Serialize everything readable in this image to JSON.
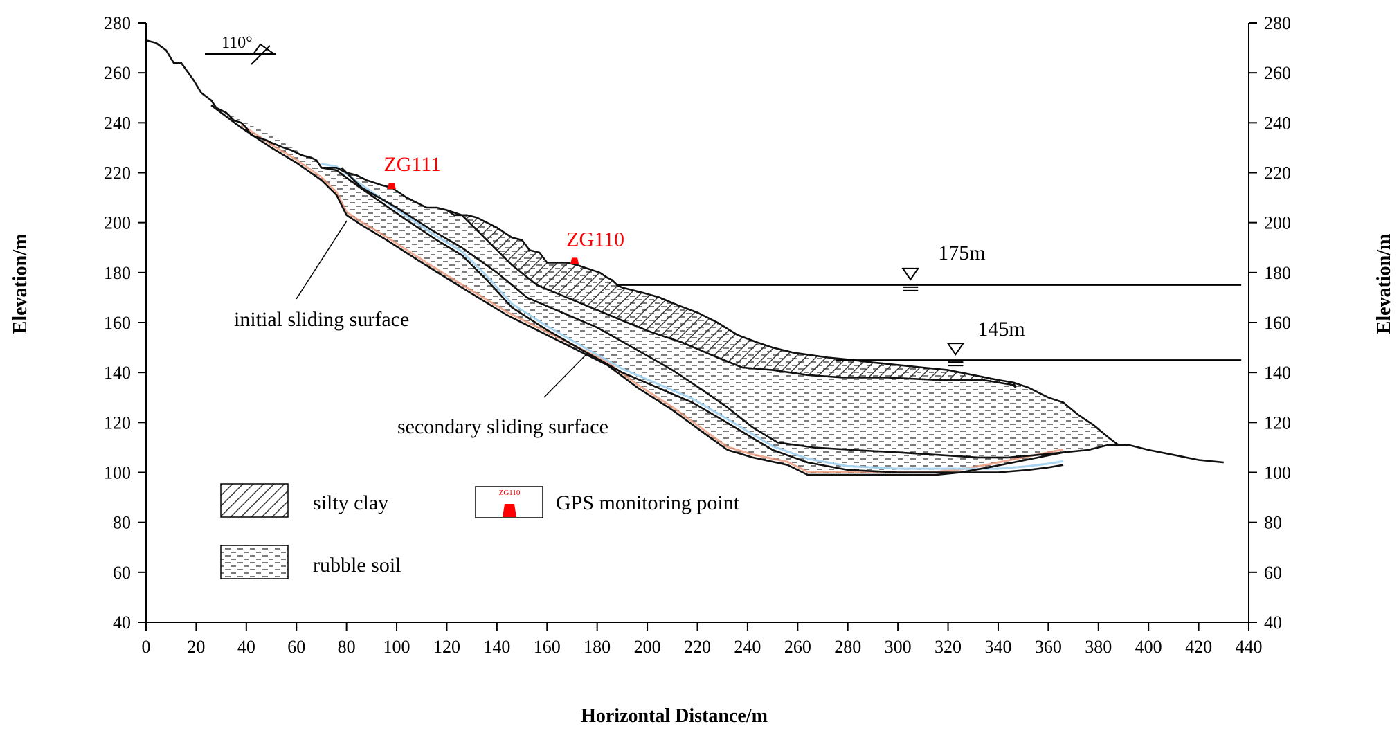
{
  "figure": {
    "x_axis_title": "Horizontal Distance/m",
    "y_axis_title_left": "Elevation/m",
    "y_axis_title_right": "Elevation/m"
  },
  "chart_data": {
    "type": "cross-section",
    "x_range": [
      0,
      440
    ],
    "y_range": [
      40,
      280
    ],
    "x_ticks": [
      0,
      20,
      40,
      60,
      80,
      100,
      120,
      140,
      160,
      180,
      200,
      220,
      240,
      260,
      280,
      300,
      320,
      340,
      360,
      380,
      400,
      420,
      440
    ],
    "y_ticks": [
      40,
      60,
      80,
      100,
      120,
      140,
      160,
      180,
      200,
      220,
      240,
      260,
      280
    ],
    "ground_surface": [
      [
        0,
        273
      ],
      [
        4,
        272
      ],
      [
        8,
        269
      ],
      [
        11,
        264
      ],
      [
        14,
        264
      ],
      [
        19,
        257
      ],
      [
        22,
        252
      ],
      [
        26,
        249
      ],
      [
        28,
        246
      ],
      [
        30,
        245
      ],
      [
        32,
        244
      ],
      [
        35,
        241
      ],
      [
        38,
        240
      ],
      [
        40,
        238
      ],
      [
        42,
        235
      ],
      [
        45,
        234
      ],
      [
        48,
        233
      ],
      [
        50,
        232
      ],
      [
        55,
        230
      ],
      [
        58,
        229
      ],
      [
        62,
        227
      ],
      [
        66,
        226
      ],
      [
        68,
        225
      ],
      [
        70,
        222
      ],
      [
        74,
        222
      ],
      [
        76,
        222
      ],
      [
        78,
        221
      ],
      [
        80,
        220
      ],
      [
        84,
        219
      ],
      [
        88,
        217
      ],
      [
        94,
        215
      ],
      [
        98,
        214
      ],
      [
        101,
        212
      ],
      [
        104,
        210
      ],
      [
        108,
        208
      ],
      [
        112,
        206
      ],
      [
        116,
        206
      ],
      [
        120,
        205
      ],
      [
        123,
        203
      ],
      [
        128,
        203
      ],
      [
        132,
        202
      ],
      [
        136,
        200
      ],
      [
        140,
        198
      ],
      [
        146,
        194
      ],
      [
        150,
        193
      ],
      [
        153,
        189
      ],
      [
        157,
        188
      ],
      [
        160,
        184
      ],
      [
        164,
        184
      ],
      [
        168,
        184
      ],
      [
        172,
        183
      ],
      [
        175,
        182
      ],
      [
        178,
        181
      ],
      [
        181,
        180
      ],
      [
        184,
        178
      ],
      [
        186,
        177
      ],
      [
        188,
        175
      ],
      [
        190,
        174
      ],
      [
        194,
        173
      ],
      [
        198,
        172
      ],
      [
        205,
        170
      ],
      [
        212,
        167
      ],
      [
        220,
        164
      ],
      [
        228,
        160
      ],
      [
        236,
        155
      ],
      [
        244,
        152
      ],
      [
        250,
        150
      ],
      [
        258,
        148
      ],
      [
        265,
        147
      ],
      [
        272,
        146
      ],
      [
        282,
        145
      ],
      [
        290,
        144
      ],
      [
        300,
        143
      ],
      [
        310,
        142
      ],
      [
        320,
        141
      ],
      [
        330,
        139
      ],
      [
        340,
        137
      ],
      [
        346,
        136
      ],
      [
        347,
        134
      ]
    ],
    "rubble_boundary": [
      [
        30,
        245
      ],
      [
        38,
        241
      ],
      [
        50,
        235
      ],
      [
        60,
        229
      ],
      [
        72,
        221
      ],
      [
        80,
        219
      ],
      [
        88,
        217
      ]
    ],
    "initial_sliding_surface": [
      [
        26,
        247
      ],
      [
        38,
        238
      ],
      [
        50,
        230
      ],
      [
        60,
        224
      ],
      [
        70,
        217
      ],
      [
        76,
        211
      ],
      [
        80,
        203
      ],
      [
        86,
        199
      ],
      [
        96,
        193
      ],
      [
        110,
        184
      ],
      [
        126,
        174
      ],
      [
        144,
        163
      ],
      [
        164,
        153
      ],
      [
        184,
        143
      ],
      [
        196,
        134
      ],
      [
        210,
        125
      ],
      [
        225,
        114
      ],
      [
        232,
        109
      ],
      [
        242,
        106
      ],
      [
        256,
        103
      ],
      [
        264,
        99
      ],
      [
        276,
        99
      ],
      [
        300,
        99
      ],
      [
        315,
        99
      ],
      [
        325,
        100
      ],
      [
        336,
        102
      ],
      [
        346,
        104
      ],
      [
        356,
        106
      ],
      [
        366,
        108
      ],
      [
        376,
        109
      ],
      [
        384,
        111
      ],
      [
        388,
        111
      ],
      [
        392,
        111
      ],
      [
        400,
        109
      ],
      [
        410,
        107
      ],
      [
        420,
        105
      ],
      [
        430,
        104
      ]
    ],
    "secondary_sliding_surface": [
      [
        70,
        222
      ],
      [
        76,
        221
      ],
      [
        84,
        215
      ],
      [
        94,
        208
      ],
      [
        104,
        201
      ],
      [
        116,
        193
      ],
      [
        126,
        187
      ],
      [
        136,
        177
      ],
      [
        146,
        166
      ],
      [
        160,
        157
      ],
      [
        174,
        149
      ],
      [
        190,
        140
      ],
      [
        204,
        134
      ],
      [
        218,
        128
      ],
      [
        230,
        121
      ],
      [
        240,
        115
      ],
      [
        250,
        109
      ],
      [
        264,
        104
      ],
      [
        280,
        101
      ],
      [
        300,
        100
      ],
      [
        320,
        100
      ],
      [
        340,
        100
      ],
      [
        352,
        101
      ],
      [
        360,
        102
      ],
      [
        366,
        103
      ]
    ],
    "silty_clay_bottom": [
      [
        120,
        205
      ],
      [
        126,
        203
      ],
      [
        136,
        193
      ],
      [
        146,
        183
      ],
      [
        156,
        175
      ],
      [
        168,
        170
      ],
      [
        180,
        165
      ],
      [
        192,
        160
      ],
      [
        202,
        156
      ],
      [
        214,
        152
      ],
      [
        228,
        146
      ],
      [
        238,
        142
      ],
      [
        250,
        141
      ],
      [
        264,
        139
      ],
      [
        278,
        138
      ],
      [
        296,
        138
      ],
      [
        316,
        137
      ],
      [
        334,
        137
      ],
      [
        346,
        135
      ],
      [
        347,
        134
      ]
    ],
    "rubble_lower_boundary": [
      [
        78,
        222
      ],
      [
        86,
        214
      ],
      [
        100,
        206
      ],
      [
        114,
        197
      ],
      [
        126,
        190
      ],
      [
        140,
        180
      ],
      [
        152,
        170
      ],
      [
        166,
        164
      ],
      [
        180,
        158
      ],
      [
        196,
        149
      ],
      [
        210,
        141
      ],
      [
        222,
        133
      ],
      [
        232,
        126
      ],
      [
        242,
        118
      ],
      [
        252,
        112
      ],
      [
        266,
        110
      ],
      [
        282,
        109
      ],
      [
        300,
        108
      ],
      [
        316,
        107
      ],
      [
        332,
        106
      ],
      [
        344,
        106
      ],
      [
        356,
        107
      ],
      [
        366,
        108
      ]
    ],
    "rubble_outer_boundary": [
      [
        346,
        136
      ],
      [
        352,
        134
      ],
      [
        360,
        130
      ],
      [
        366,
        128
      ],
      [
        372,
        123
      ],
      [
        378,
        119
      ],
      [
        384,
        114
      ],
      [
        388,
        111
      ]
    ],
    "water_levels": [
      {
        "label": "175m",
        "elevation": 175,
        "x_start": 188,
        "x_end": 437
      },
      {
        "label": "145m",
        "elevation": 145,
        "x_start": 275,
        "x_end": 437
      }
    ],
    "gps_points": [
      {
        "label": "ZG111",
        "x": 98,
        "elevation": 214
      },
      {
        "label": "ZG110",
        "x": 171,
        "elevation": 184
      }
    ],
    "slope_direction": "110°",
    "annotations": [
      {
        "text": "initial sliding surface",
        "target": "initial_sliding_surface"
      },
      {
        "text": "secondary sliding surface",
        "target": "secondary_sliding_surface"
      }
    ],
    "legend": [
      {
        "key": "silty_clay",
        "label": "silty clay"
      },
      {
        "key": "rubble_soil",
        "label": "rubble soil"
      },
      {
        "key": "gps",
        "label": "GPS monitoring point",
        "sample": "ZG110"
      }
    ],
    "colors": {
      "gps": "#ff0000",
      "sliding_fill": "#f8d8c0",
      "sliding_line": "#e89070",
      "slip_band": "#a8d4f0"
    }
  }
}
